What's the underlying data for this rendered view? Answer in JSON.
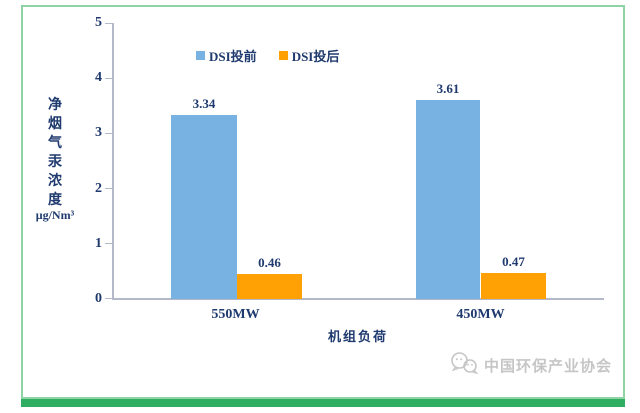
{
  "frame": {
    "border_color": "#8FD2A4",
    "bottom_bar_color": "#2FAD61"
  },
  "chart_data": {
    "type": "bar",
    "categories": [
      "550MW",
      "450MW"
    ],
    "series": [
      {
        "name": "DSI投前",
        "color": "#77B2E3",
        "values": [
          3.34,
          3.61
        ]
      },
      {
        "name": "DSI投后",
        "color": "#FFA104",
        "values": [
          0.46,
          0.47
        ]
      }
    ],
    "title": "",
    "xlabel": "机组负荷",
    "ylabel": "净烟气汞浓度",
    "ylabel_unit": "μg/Nm³",
    "ylim": [
      0,
      5
    ],
    "yticks": [
      5,
      4,
      3,
      2,
      1,
      0
    ],
    "grid": false,
    "legend_position": "top-center",
    "text_color": "#1F3A6E",
    "axis_color": "#B3B9C9"
  },
  "watermark": {
    "text": "中国环保产业协会",
    "logo": "chat-bubbles-logo",
    "color": "#C6C6C6"
  }
}
